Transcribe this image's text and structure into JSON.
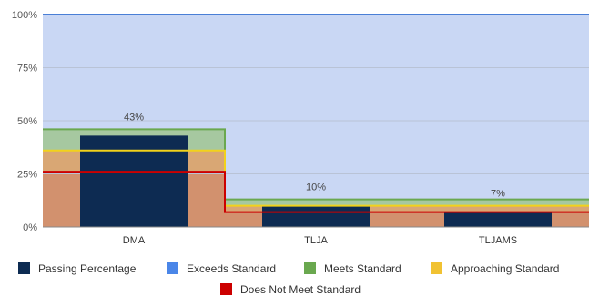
{
  "chart_data": {
    "type": "bar",
    "categories": [
      "DMA",
      "TLJA",
      "TLJAMS"
    ],
    "series": [
      {
        "name": "Passing Percentage",
        "values": [
          43,
          10,
          7
        ],
        "labels": [
          "43%",
          "10%",
          "7%"
        ]
      }
    ],
    "bands": [
      {
        "name": "Exceeds Standard",
        "values": [
          100,
          100,
          100
        ]
      },
      {
        "name": "Meets Standard",
        "values": [
          46,
          13,
          13
        ]
      },
      {
        "name": "Approaching Standard",
        "values": [
          36,
          10,
          10
        ]
      },
      {
        "name": "Does Not Meet Standard",
        "values": [
          26,
          7,
          7
        ]
      }
    ],
    "ylim": [
      0,
      100
    ],
    "yticks": [
      "0%",
      "25%",
      "50%",
      "75%",
      "100%"
    ],
    "grid": true,
    "legend_position": "bottom"
  },
  "colors": {
    "passing": "#0d2b52",
    "exceeds_fill": "#c9d7f4",
    "exceeds_line": "#4a7fd6",
    "meets_fill": "#a6c8a0",
    "meets_line": "#6aa84f",
    "approaching_fill": "#d9a774",
    "approaching_line": "#f2d21b",
    "doesnot_fill": "#d2916e",
    "doesnot_line": "#cc0000",
    "legend_exceeds": "#4a86e8",
    "legend_meets": "#6aa84f",
    "legend_approaching": "#f1c232",
    "legend_doesnot": "#cc0000"
  }
}
